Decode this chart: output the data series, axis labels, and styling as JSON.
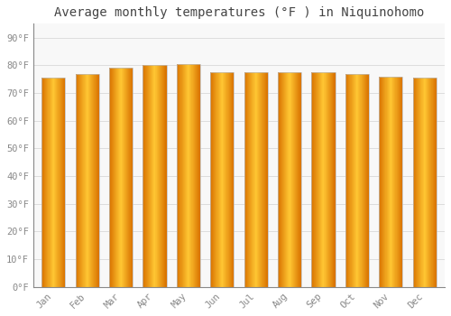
{
  "months": [
    "Jan",
    "Feb",
    "Mar",
    "Apr",
    "May",
    "Jun",
    "Jul",
    "Aug",
    "Sep",
    "Oct",
    "Nov",
    "Dec"
  ],
  "values": [
    75.5,
    77.0,
    79.0,
    80.0,
    80.5,
    77.5,
    77.5,
    77.5,
    77.5,
    77.0,
    76.0,
    75.5
  ],
  "bar_color_center": "#FFB300",
  "bar_color_edge": "#E65C00",
  "bar_color_main": "#FFA500",
  "background_color": "#FFFFFF",
  "plot_bg_color": "#F8F8F8",
  "title": "Average monthly temperatures (°F ) in Niquinohomo",
  "title_fontsize": 10,
  "ylabel_ticks": [
    0,
    10,
    20,
    30,
    40,
    50,
    60,
    70,
    80,
    90
  ],
  "ylim": [
    0,
    95
  ],
  "grid_color": "#DDDDDD",
  "tick_label_color": "#888888",
  "font_family": "monospace",
  "title_color": "#444444",
  "bar_width": 0.7
}
